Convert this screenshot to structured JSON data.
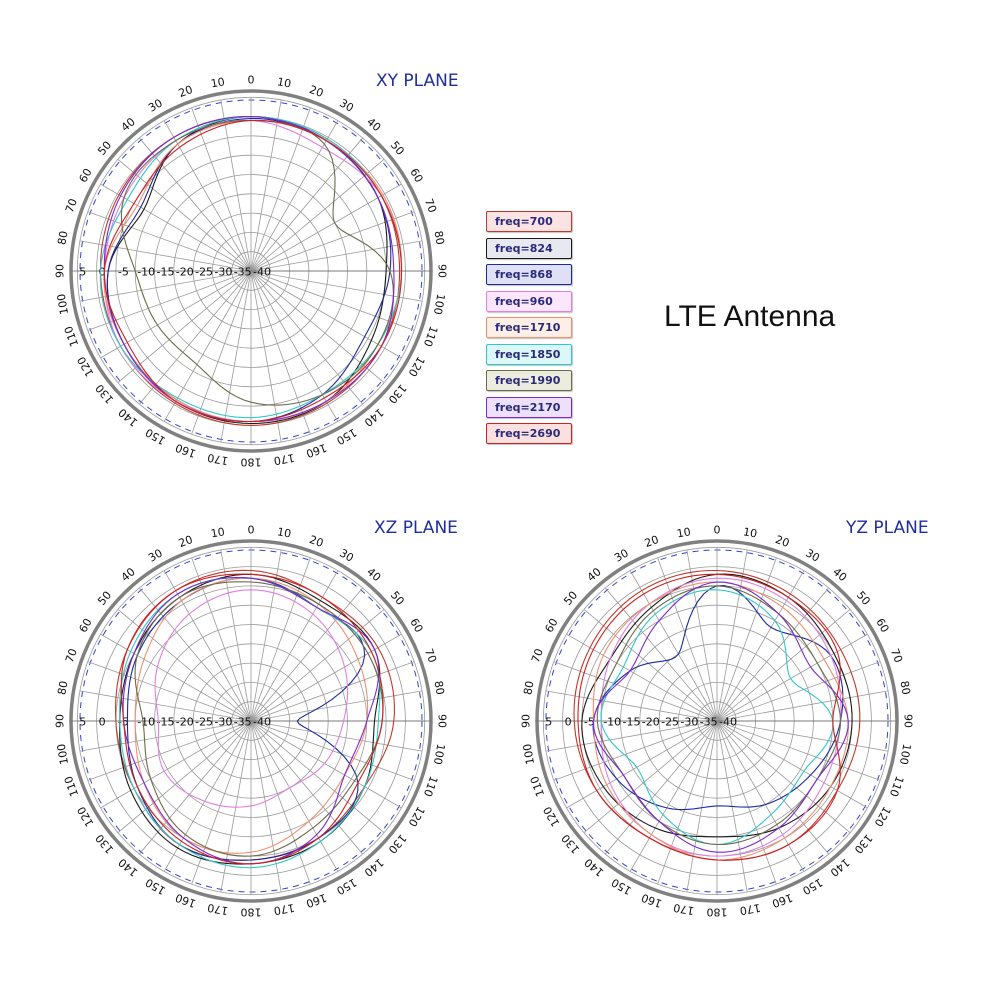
{
  "figure_title": "LTE Antenna",
  "chart_data": [
    {
      "type": "polar",
      "title": "XY PLANE",
      "angle_ticks": [
        "0",
        "10",
        "20",
        "30",
        "40",
        "50",
        "60",
        "70",
        "80",
        "90",
        "100",
        "110",
        "120",
        "130",
        "140",
        "150",
        "160",
        "170",
        "180",
        "170",
        "160",
        "150",
        "140",
        "130",
        "120",
        "110",
        "100",
        "90",
        "80",
        "70",
        "60",
        "50",
        "40",
        "30",
        "20",
        "10"
      ],
      "radial_ticks": [
        "5",
        "0",
        "-5",
        "-10",
        "-15",
        "-20",
        "-25",
        "-30",
        "-35",
        "-40"
      ],
      "rlim": [
        -40,
        5
      ],
      "series": [
        {
          "name": "freq=700",
          "theta": [
            0,
            30,
            60,
            90,
            120,
            150,
            180,
            210,
            240,
            270,
            300,
            330
          ],
          "r": [
            0,
            -0.5,
            -1,
            -1.5,
            -1,
            -0.5,
            0,
            -0.5,
            -1,
            -1,
            -0.5,
            0
          ]
        },
        {
          "name": "freq=824",
          "theta": [
            0,
            30,
            60,
            90,
            120,
            150,
            180,
            210,
            240,
            270,
            300,
            330
          ],
          "r": [
            0,
            -1,
            -2,
            -5,
            -4,
            -1,
            -0.5,
            -1,
            -2,
            -3,
            -8,
            -2
          ]
        },
        {
          "name": "freq=868",
          "theta": [
            0,
            30,
            60,
            90,
            120,
            150,
            180,
            210,
            240,
            270,
            300,
            330
          ],
          "r": [
            -0.5,
            -1,
            -2,
            -4,
            -6,
            -3,
            -1,
            -1.5,
            -2,
            -3,
            -7,
            -2
          ]
        },
        {
          "name": "freq=960",
          "theta": [
            0,
            30,
            60,
            90,
            120,
            150,
            180,
            210,
            240,
            270,
            300,
            330
          ],
          "r": [
            -1,
            -3,
            -1,
            -1,
            -2,
            -1,
            -1,
            -1,
            -1,
            -2,
            -2,
            -1
          ]
        },
        {
          "name": "freq=1710",
          "theta": [
            0,
            30,
            60,
            90,
            120,
            150,
            180,
            210,
            240,
            270,
            300,
            330
          ],
          "r": [
            -1,
            -1,
            -0.5,
            -1,
            -2,
            -1,
            -1,
            -1.5,
            -2,
            -2,
            -6,
            -2
          ]
        },
        {
          "name": "freq=1850",
          "theta": [
            0,
            30,
            60,
            90,
            120,
            150,
            180,
            210,
            240,
            270,
            300,
            330
          ],
          "r": [
            0,
            -0.5,
            -1,
            -1,
            -2,
            -3,
            -2,
            -2,
            -1,
            -1,
            -3,
            -1
          ]
        },
        {
          "name": "freq=1990",
          "theta": [
            0,
            30,
            60,
            90,
            120,
            150,
            180,
            210,
            240,
            270,
            300,
            330
          ],
          "r": [
            -1,
            -2,
            -15,
            -4,
            -2,
            -3,
            -6,
            -12,
            -12,
            -10,
            -2,
            -1
          ]
        },
        {
          "name": "freq=2170",
          "theta": [
            0,
            30,
            60,
            90,
            120,
            150,
            180,
            210,
            240,
            270,
            300,
            330
          ],
          "r": [
            0,
            -1,
            -2,
            -3,
            -1,
            -1,
            -1,
            -1,
            -2,
            -2,
            -1,
            0
          ]
        },
        {
          "name": "freq=2690",
          "theta": [
            0,
            30,
            60,
            90,
            120,
            150,
            180,
            210,
            240,
            270,
            300,
            330
          ],
          "r": [
            -1,
            -1,
            -1,
            -1,
            -1,
            -2,
            -1,
            -1,
            -3,
            -2,
            -5,
            -3
          ]
        }
      ]
    },
    {
      "type": "polar",
      "title": "XZ PLANE",
      "angle_ticks": [
        "0",
        "10",
        "20",
        "30",
        "40",
        "50",
        "60",
        "70",
        "80",
        "90",
        "100",
        "110",
        "120",
        "130",
        "140",
        "150",
        "160",
        "170",
        "180",
        "170",
        "160",
        "150",
        "140",
        "130",
        "120",
        "110",
        "100",
        "90",
        "80",
        "70",
        "60",
        "50",
        "40",
        "30",
        "20",
        "10"
      ],
      "radial_ticks": [
        "5",
        "0",
        "-5",
        "-10",
        "-15",
        "-20",
        "-25",
        "-30",
        "-35",
        "-40"
      ],
      "rlim": [
        -40,
        5
      ],
      "series": [
        {
          "name": "freq=700",
          "theta": [
            0,
            30,
            60,
            90,
            120,
            150,
            180,
            210,
            240,
            270,
            300,
            330
          ],
          "r": [
            -1,
            -3,
            -2,
            -3,
            -6,
            -5,
            -4,
            -3,
            -5,
            -5,
            -3,
            -1
          ]
        },
        {
          "name": "freq=824",
          "theta": [
            0,
            30,
            60,
            90,
            120,
            150,
            180,
            210,
            240,
            270,
            300,
            330
          ],
          "r": [
            -2,
            -4,
            -3,
            -8,
            -6,
            -4,
            -3,
            -2,
            -4,
            -6,
            -5,
            -3
          ]
        },
        {
          "name": "freq=868",
          "theta": [
            0,
            30,
            60,
            90,
            120,
            150,
            180,
            210,
            240,
            270,
            300,
            330
          ],
          "r": [
            -3,
            -6,
            -6,
            -28,
            -8,
            -5,
            -4,
            -3,
            -6,
            -8,
            -6,
            -4
          ]
        },
        {
          "name": "freq=960",
          "theta": [
            0,
            30,
            60,
            90,
            120,
            150,
            180,
            210,
            240,
            270,
            300,
            330
          ],
          "r": [
            -6,
            -8,
            -12,
            -16,
            -18,
            -20,
            -18,
            -16,
            -14,
            -16,
            -12,
            -8
          ]
        },
        {
          "name": "freq=1710",
          "theta": [
            0,
            30,
            60,
            90,
            120,
            150,
            180,
            210,
            240,
            270,
            300,
            330
          ],
          "r": [
            -3,
            -5,
            -8,
            -10,
            -12,
            -10,
            -6,
            -5,
            -8,
            -10,
            -8,
            -4
          ]
        },
        {
          "name": "freq=1850",
          "theta": [
            0,
            30,
            60,
            90,
            120,
            150,
            180,
            210,
            240,
            270,
            300,
            330
          ],
          "r": [
            -3,
            -6,
            -4,
            -7,
            -6,
            -4,
            -2,
            -3,
            -5,
            -6,
            -4,
            -2
          ]
        },
        {
          "name": "freq=1990",
          "theta": [
            0,
            30,
            60,
            90,
            120,
            150,
            180,
            210,
            240,
            270,
            300,
            330
          ],
          "r": [
            -4,
            -5,
            -5,
            -6,
            -9,
            -8,
            -5,
            -6,
            -10,
            -12,
            -6,
            -3
          ]
        },
        {
          "name": "freq=2170",
          "theta": [
            0,
            30,
            60,
            90,
            120,
            150,
            180,
            210,
            240,
            270,
            300,
            330
          ],
          "r": [
            -3,
            -6,
            -3,
            -10,
            -12,
            -6,
            -3,
            -5,
            -8,
            -7,
            -5,
            -2
          ]
        },
        {
          "name": "freq=2690",
          "theta": [
            0,
            30,
            60,
            90,
            120,
            150,
            180,
            210,
            240,
            270,
            300,
            330
          ],
          "r": [
            -2,
            -3,
            -4,
            -6,
            -8,
            -5,
            -3,
            -4,
            -6,
            -7,
            -3,
            -1
          ]
        }
      ]
    },
    {
      "type": "polar",
      "title": "YZ PLANE",
      "angle_ticks": [
        "0",
        "10",
        "20",
        "30",
        "40",
        "50",
        "60",
        "70",
        "80",
        "90",
        "100",
        "110",
        "120",
        "130",
        "140",
        "150",
        "160",
        "170",
        "180",
        "170",
        "160",
        "150",
        "140",
        "130",
        "120",
        "110",
        "100",
        "90",
        "80",
        "70",
        "60",
        "50",
        "40",
        "30",
        "20",
        "10"
      ],
      "radial_ticks": [
        "5",
        "0",
        "-5",
        "-10",
        "-15",
        "-20",
        "-25",
        "-30",
        "-35",
        "-40"
      ],
      "rlim": [
        -40,
        5
      ],
      "series": [
        {
          "name": "freq=700",
          "theta": [
            0,
            30,
            60,
            90,
            120,
            150,
            180,
            210,
            240,
            270,
            300,
            330
          ],
          "r": [
            -1,
            -2,
            -3,
            -3,
            -4,
            -3,
            -4,
            -5,
            -4,
            -3,
            -2,
            -1
          ]
        },
        {
          "name": "freq=824",
          "theta": [
            0,
            30,
            60,
            90,
            120,
            150,
            180,
            210,
            240,
            270,
            300,
            330
          ],
          "r": [
            -2,
            -3,
            -5,
            -5,
            -6,
            -8,
            -10,
            -8,
            -6,
            -5,
            -8,
            -6
          ]
        },
        {
          "name": "freq=868",
          "theta": [
            0,
            30,
            60,
            90,
            120,
            150,
            180,
            210,
            240,
            270,
            300,
            330
          ],
          "r": [
            -5,
            -12,
            -6,
            -8,
            -12,
            -15,
            -18,
            -14,
            -10,
            -8,
            -14,
            -20
          ]
        },
        {
          "name": "freq=960",
          "theta": [
            0,
            30,
            60,
            90,
            120,
            150,
            180,
            210,
            240,
            270,
            300,
            330
          ],
          "r": [
            -3,
            -4,
            -6,
            -8,
            -8,
            -6,
            -5,
            -6,
            -8,
            -10,
            -8,
            -5
          ]
        },
        {
          "name": "freq=1710",
          "theta": [
            0,
            30,
            60,
            90,
            120,
            150,
            180,
            210,
            240,
            270,
            300,
            330
          ],
          "r": [
            -4,
            -6,
            -8,
            -6,
            -6,
            -5,
            -4,
            -6,
            -7,
            -8,
            -6,
            -5
          ]
        },
        {
          "name": "freq=1850",
          "theta": [
            0,
            30,
            60,
            90,
            120,
            150,
            180,
            210,
            240,
            270,
            300,
            330
          ],
          "r": [
            -6,
            -10,
            -18,
            -10,
            -14,
            -12,
            -8,
            -12,
            -16,
            -10,
            -12,
            -8
          ]
        },
        {
          "name": "freq=1990",
          "theta": [
            0,
            30,
            60,
            90,
            120,
            150,
            180,
            210,
            240,
            270,
            300,
            330
          ],
          "r": [
            -5,
            -8,
            -10,
            -8,
            -10,
            -9,
            -8,
            -10,
            -12,
            -9,
            -10,
            -7
          ]
        },
        {
          "name": "freq=2170",
          "theta": [
            0,
            30,
            60,
            90,
            120,
            150,
            180,
            210,
            240,
            270,
            300,
            330
          ],
          "r": [
            -4,
            -8,
            -12,
            -6,
            -10,
            -8,
            -6,
            -10,
            -12,
            -8,
            -14,
            -10
          ]
        },
        {
          "name": "freq=2690",
          "theta": [
            0,
            30,
            60,
            90,
            120,
            150,
            180,
            210,
            240,
            270,
            300,
            330
          ],
          "r": [
            -2,
            -3,
            -4,
            -10,
            -4,
            -3,
            -4,
            -5,
            -4,
            -4,
            -3,
            -2
          ]
        }
      ]
    }
  ],
  "legend": {
    "items": [
      {
        "label": "freq=700",
        "color": "#c0392b",
        "bg": "#fbe3e3"
      },
      {
        "label": "freq=824",
        "color": "#1a1a1a",
        "bg": "#e8e8f0"
      },
      {
        "label": "freq=868",
        "color": "#1a2a9e",
        "bg": "#dfe0f5"
      },
      {
        "label": "freq=960",
        "color": "#e080e0",
        "bg": "#fbe6fb"
      },
      {
        "label": "freq=1710",
        "color": "#f09070",
        "bg": "#fdeee6"
      },
      {
        "label": "freq=1850",
        "color": "#30c8c8",
        "bg": "#dcf7f7"
      },
      {
        "label": "freq=1990",
        "color": "#6b6b4a",
        "bg": "#ececdf"
      },
      {
        "label": "freq=2170",
        "color": "#7a2ad0",
        "bg": "#ece0fa"
      },
      {
        "label": "freq=2690",
        "color": "#d02020",
        "bg": "#fbe0e0"
      }
    ]
  }
}
